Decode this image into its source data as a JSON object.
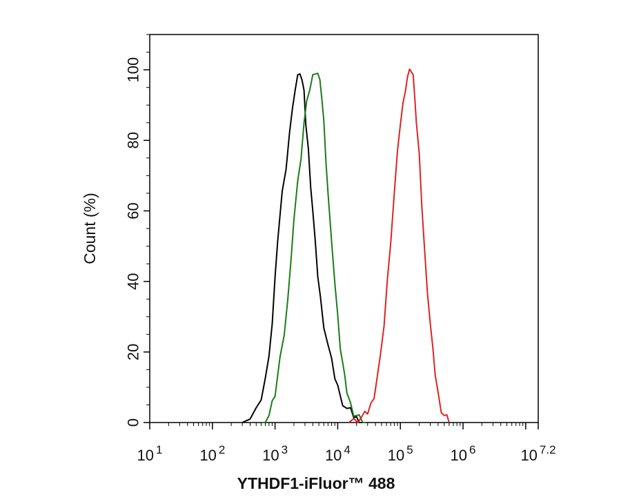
{
  "chart_data": {
    "type": "line",
    "title": "",
    "xlabel": "YTHDF1-iFluor™ 488",
    "ylabel": "Count  (%)",
    "x_scale": "log10",
    "xlim": [
      10,
      15848932
    ],
    "ylim": [
      0,
      110
    ],
    "x_ticks": [
      {
        "value": 10,
        "base": "10",
        "exp": "1"
      },
      {
        "value": 100,
        "base": "10",
        "exp": "2"
      },
      {
        "value": 1000,
        "base": "10",
        "exp": "3"
      },
      {
        "value": 10000,
        "base": "10",
        "exp": "4"
      },
      {
        "value": 100000,
        "base": "10",
        "exp": "5"
      },
      {
        "value": 1000000,
        "base": "10",
        "exp": "6"
      },
      {
        "value": 15848932,
        "base": "10",
        "exp": "7.2"
      }
    ],
    "y_ticks": [
      0,
      20,
      40,
      60,
      80,
      100
    ],
    "grid": false,
    "legend": "none",
    "series": [
      {
        "color": "#000000",
        "x": [
          300,
          400,
          500,
          600,
          700,
          800,
          900,
          1000,
          1100,
          1300,
          1500,
          1700,
          1900,
          2100,
          2300,
          2500,
          2700,
          2900,
          3100,
          3400,
          3700,
          4000,
          4400,
          4800,
          5300,
          6000,
          7000,
          8000,
          9000,
          10000,
          12000,
          14000,
          16000,
          18000,
          20000,
          22000,
          25000
        ],
        "y": [
          0,
          1,
          3,
          7,
          12,
          20,
          28,
          40,
          52,
          65,
          73,
          82,
          88,
          95,
          98,
          100,
          97,
          93,
          85,
          77,
          68,
          60,
          50,
          42,
          35,
          28,
          22,
          17,
          13,
          10,
          6,
          4,
          3,
          2,
          1,
          0.5,
          0
        ]
      },
      {
        "color": "#1a7a1a",
        "x": [
          600,
          700,
          800,
          900,
          1000,
          1200,
          1400,
          1600,
          1800,
          2000,
          2300,
          2600,
          2900,
          3200,
          3600,
          4000,
          4400,
          4800,
          5200,
          5600,
          6000,
          6500,
          7000,
          8000,
          9000,
          10000,
          11000,
          12000,
          13000,
          14000,
          16000,
          18000,
          20000,
          22000,
          25000,
          28000
        ],
        "y": [
          0,
          1,
          2,
          5,
          8,
          18,
          26,
          35,
          45,
          58,
          68,
          76,
          85,
          90,
          95,
          98,
          100,
          99,
          96,
          92,
          85,
          75,
          65,
          50,
          40,
          30,
          22,
          17,
          12,
          9,
          5,
          3,
          2,
          1,
          0.5,
          0
        ]
      },
      {
        "color": "#dd2222",
        "x": [
          15000,
          18000,
          21000,
          24000,
          27000,
          30000,
          34000,
          38000,
          42000,
          48000,
          55000,
          62000,
          70000,
          80000,
          90000,
          100000,
          110000,
          120000,
          130000,
          140000,
          150000,
          160000,
          170000,
          180000,
          200000,
          220000,
          240000,
          270000,
          300000,
          330000,
          360000,
          400000,
          450000,
          500000,
          550000,
          600000
        ],
        "y": [
          0,
          0.5,
          1,
          1.5,
          2,
          3,
          5,
          8,
          12,
          18,
          28,
          40,
          52,
          65,
          76,
          85,
          90,
          95,
          98,
          99,
          100,
          98,
          93,
          85,
          75,
          62,
          50,
          38,
          28,
          20,
          14,
          8,
          4,
          2,
          1,
          0
        ]
      }
    ]
  }
}
